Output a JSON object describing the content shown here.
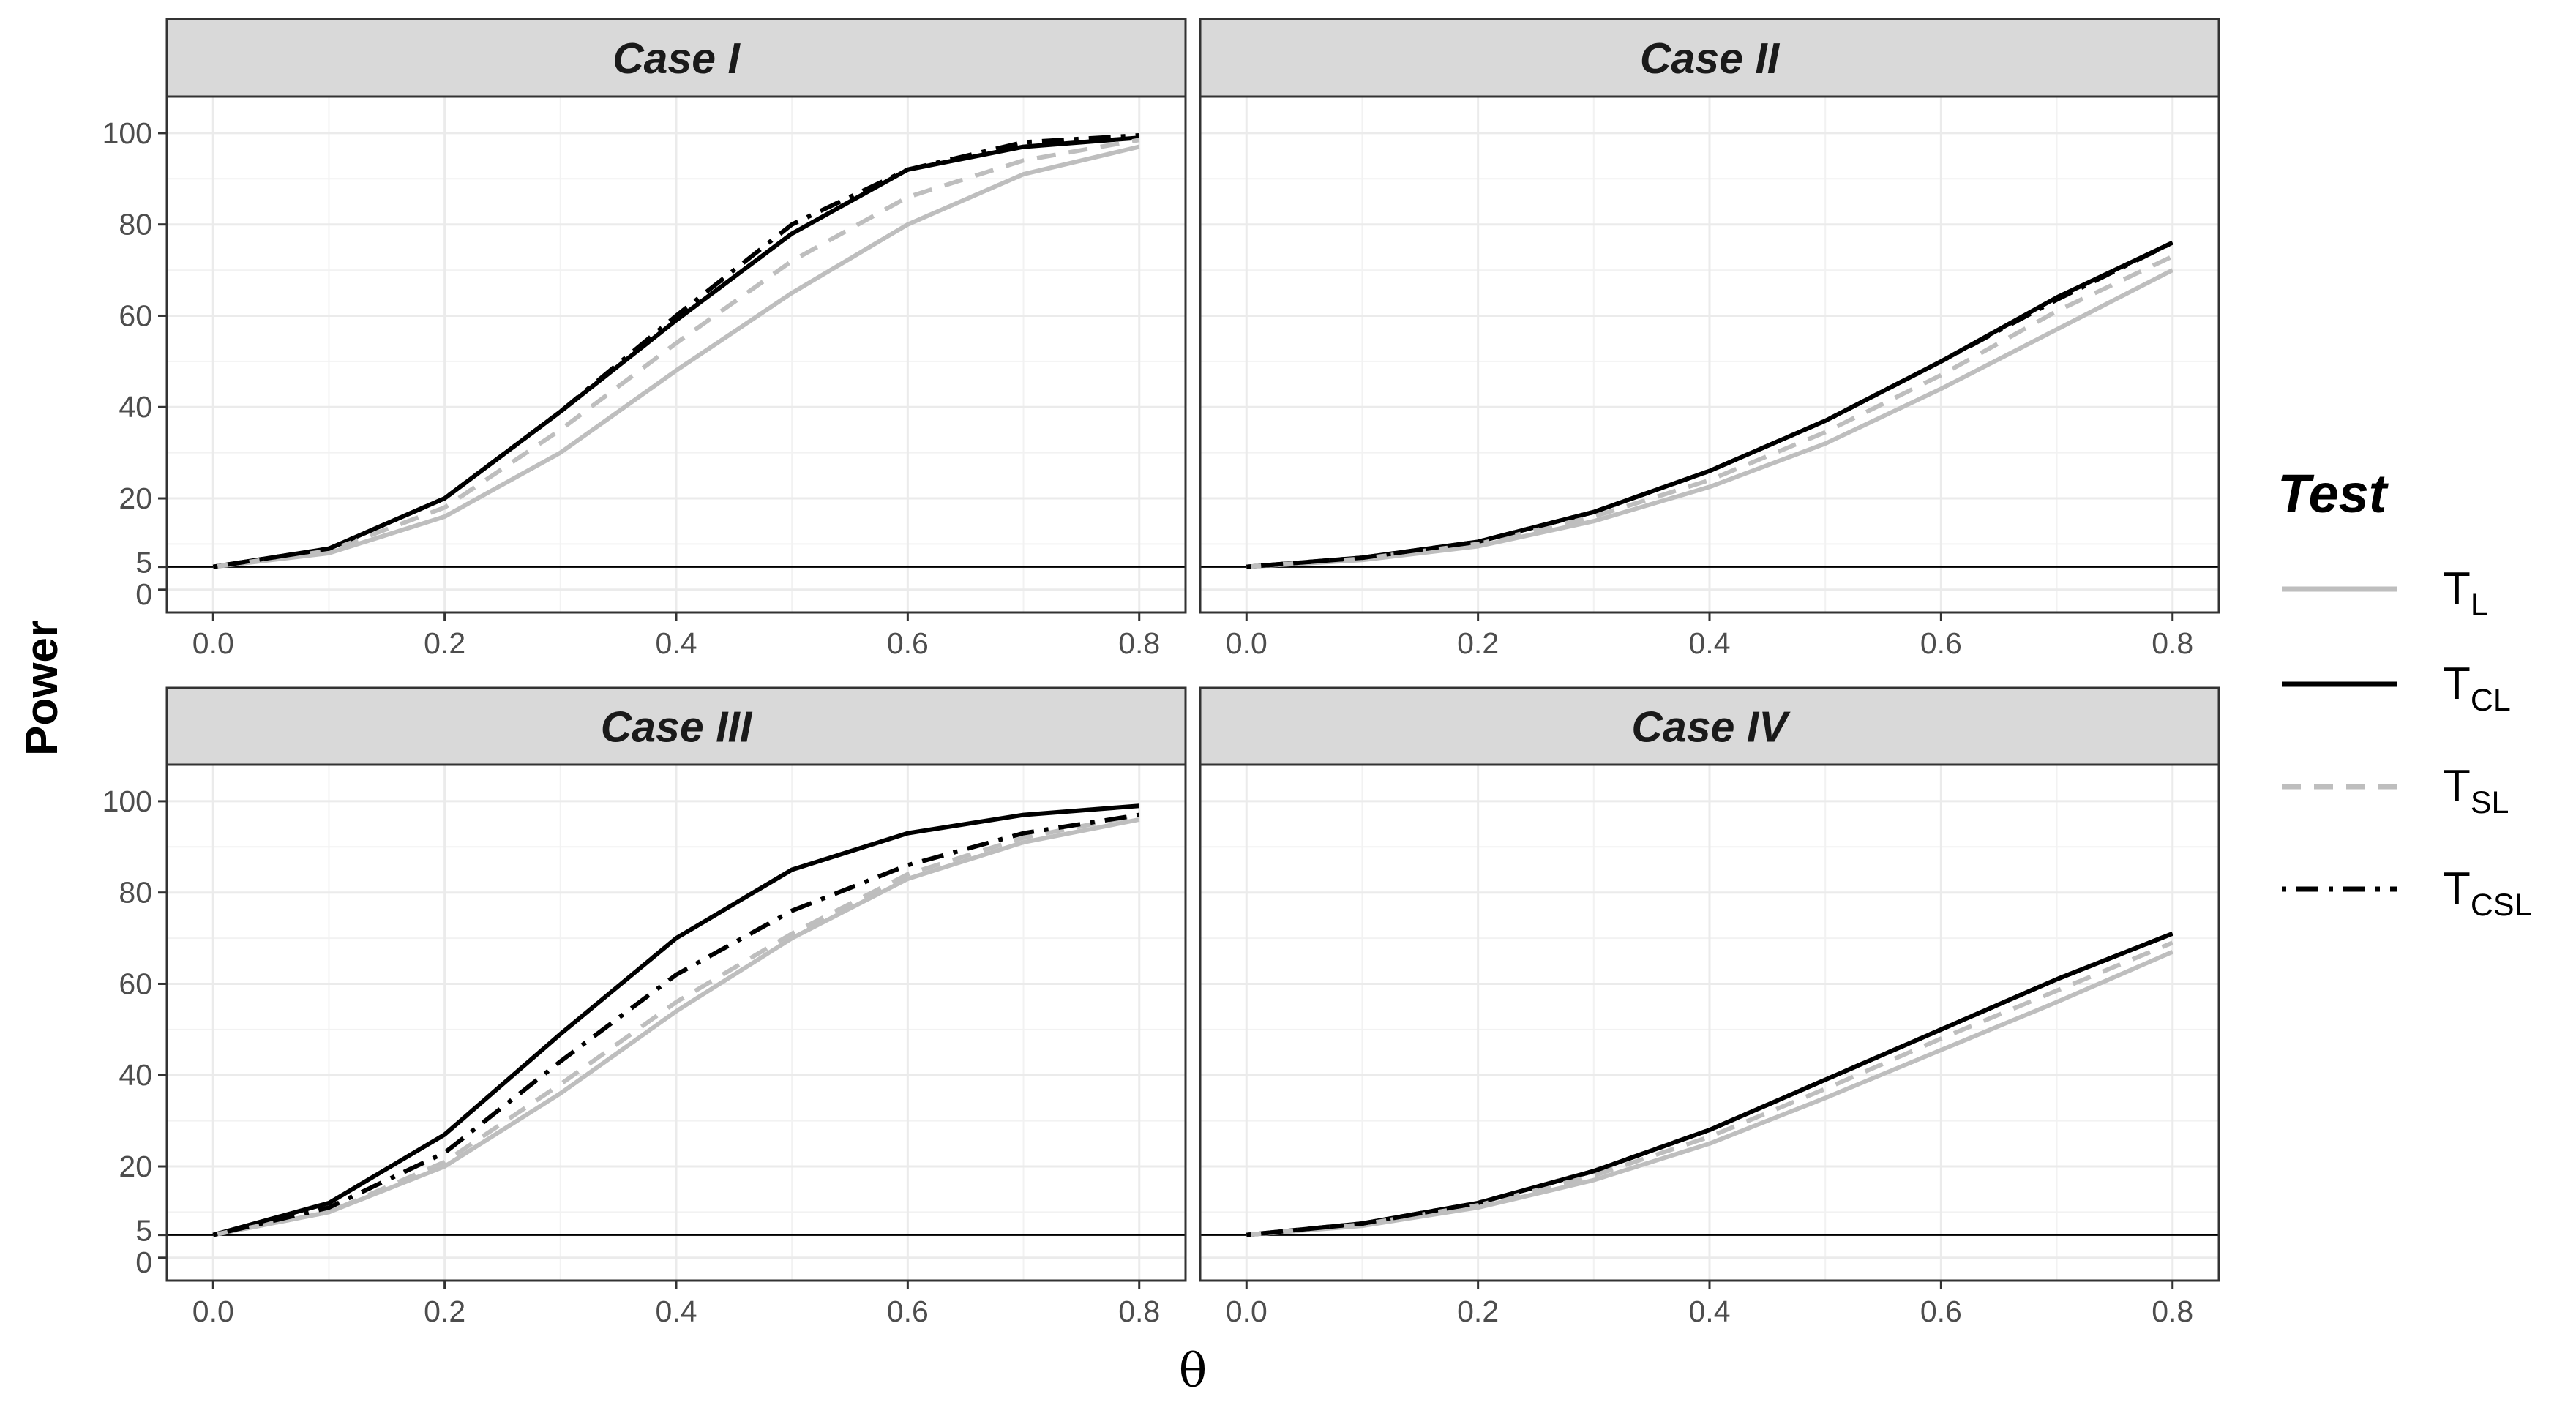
{
  "chart_data": {
    "type": "line",
    "ylabel": "Power",
    "xlabel": "θ",
    "xlim": [
      -0.04,
      0.84
    ],
    "ylim": [
      -5,
      108
    ],
    "x_ticks": [
      0.0,
      0.2,
      0.4,
      0.6,
      0.8
    ],
    "x_tick_labels": [
      "0.0",
      "0.2",
      "0.4",
      "0.6",
      "0.8"
    ],
    "y_ticks": [
      0,
      5,
      20,
      40,
      60,
      80,
      100
    ],
    "y_tick_labels": [
      "0",
      "5",
      "20",
      "40",
      "60",
      "80",
      "100"
    ],
    "reference_line_y": 5,
    "grid": true,
    "legend": {
      "title": "Test",
      "position": "right",
      "entries": [
        {
          "key": "T_L",
          "main": "T",
          "sub": "L",
          "color": "#bebebe",
          "dash": "solid"
        },
        {
          "key": "T_CL",
          "main": "T",
          "sub": "CL",
          "color": "#000000",
          "dash": "solid"
        },
        {
          "key": "T_SL",
          "main": "T",
          "sub": "SL",
          "color": "#bebebe",
          "dash": "dashed"
        },
        {
          "key": "T_CSL",
          "main": "T",
          "sub": "CSL",
          "color": "#000000",
          "dash": "dotdash"
        }
      ]
    },
    "x": [
      0.0,
      0.1,
      0.2,
      0.3,
      0.4,
      0.5,
      0.6,
      0.7,
      0.8
    ],
    "panels": [
      {
        "title": "Case I",
        "series": [
          {
            "key": "T_L",
            "values": [
              5,
              8,
              16,
              30,
              48,
              65,
              80,
              91,
              97
            ]
          },
          {
            "key": "T_CL",
            "values": [
              5,
              9,
              20,
              39,
              59,
              78,
              92,
              97,
              99
            ]
          },
          {
            "key": "T_SL",
            "values": [
              5,
              8.5,
              18,
              35,
              54,
              72,
              86,
              94,
              98.5
            ]
          },
          {
            "key": "T_CSL",
            "values": [
              5,
              9,
              20,
              39,
              60,
              80,
              92,
              98,
              99.5
            ]
          }
        ]
      },
      {
        "title": "Case II",
        "series": [
          {
            "key": "T_L",
            "values": [
              5,
              6.5,
              9.5,
              15,
              22.5,
              32,
              44,
              57,
              70
            ]
          },
          {
            "key": "T_CL",
            "values": [
              5,
              7,
              10.5,
              17,
              26,
              37,
              50,
              64,
              76
            ]
          },
          {
            "key": "T_SL",
            "values": [
              5,
              6.8,
              10,
              16,
              24,
              34.5,
              47,
              61,
              73
            ]
          },
          {
            "key": "T_CSL",
            "values": [
              5,
              7,
              10.5,
              17,
              26,
              37,
              50,
              63.5,
              76
            ]
          }
        ]
      },
      {
        "title": "Case III",
        "series": [
          {
            "key": "T_L",
            "values": [
              5,
              10,
              20,
              36,
              54,
              70,
              83,
              91,
              96
            ]
          },
          {
            "key": "T_CL",
            "values": [
              5,
              12,
              27,
              49,
              70,
              85,
              93,
              97,
              99
            ]
          },
          {
            "key": "T_SL",
            "values": [
              5,
              10,
              21,
              38,
              56,
              71,
              84,
              92,
              97
            ]
          },
          {
            "key": "T_CSL",
            "values": [
              5,
              11,
              23,
              43,
              62,
              76,
              86,
              93,
              97
            ]
          }
        ]
      },
      {
        "title": "Case IV",
        "series": [
          {
            "key": "T_L",
            "values": [
              5,
              7,
              11,
              17,
              25,
              35,
              45.5,
              56,
              67
            ]
          },
          {
            "key": "T_CL",
            "values": [
              5,
              7.5,
              12,
              19,
              28,
              39,
              50,
              61,
              71
            ]
          },
          {
            "key": "T_SL",
            "values": [
              5,
              7.3,
              11.5,
              18,
              26.5,
              37,
              48,
              58.5,
              69
            ]
          },
          {
            "key": "T_CSL",
            "values": [
              5,
              7.5,
              12,
              19,
              28,
              39,
              50,
              61,
              71
            ]
          }
        ]
      }
    ]
  }
}
